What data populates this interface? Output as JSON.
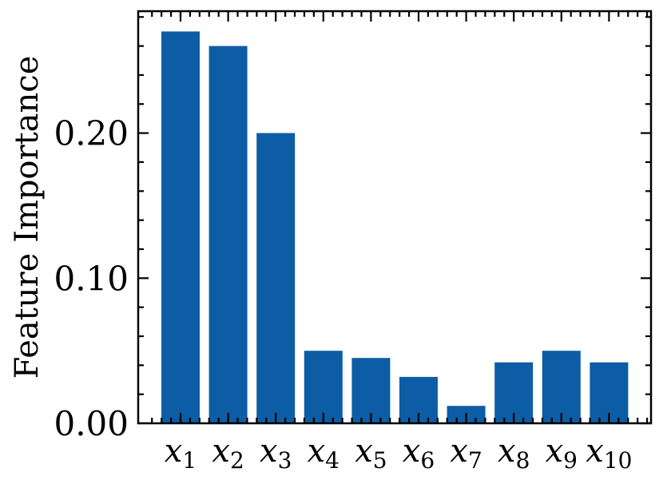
{
  "chart_data": {
    "type": "bar",
    "ylabel": "Feature Importance",
    "xlabel": "",
    "categories": [
      {
        "base": "x",
        "sub": "1"
      },
      {
        "base": "x",
        "sub": "2"
      },
      {
        "base": "x",
        "sub": "3"
      },
      {
        "base": "x",
        "sub": "4"
      },
      {
        "base": "x",
        "sub": "5"
      },
      {
        "base": "x",
        "sub": "6"
      },
      {
        "base": "x",
        "sub": "7"
      },
      {
        "base": "x",
        "sub": "8"
      },
      {
        "base": "x",
        "sub": "9"
      },
      {
        "base": "x",
        "sub": "10"
      }
    ],
    "values": [
      0.27,
      0.26,
      0.2,
      0.05,
      0.045,
      0.032,
      0.012,
      0.042,
      0.05,
      0.042
    ],
    "ylim": [
      0,
      0.284
    ],
    "yticks": [
      0.0,
      0.1,
      0.2
    ],
    "ytick_labels": [
      "0.00",
      "0.10",
      "0.20"
    ],
    "bar_color": "#0c5da5",
    "grid": false
  }
}
